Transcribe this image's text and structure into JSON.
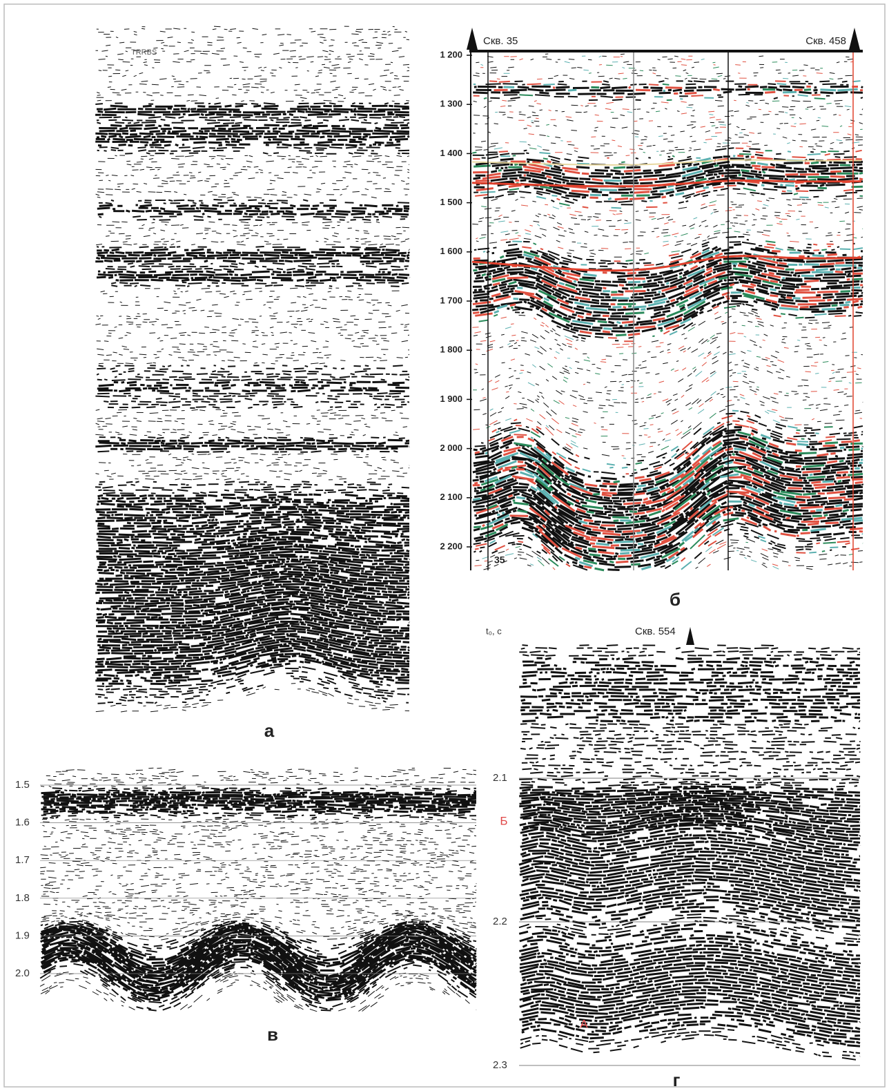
{
  "panel_a": {
    "label": "а",
    "inset_text": "TRRBS"
  },
  "panel_b": {
    "label": "б",
    "well_left": "Скв. 35",
    "well_right": "Скв. 458",
    "well_number": "35",
    "ticks": [
      "1 200",
      "1 300",
      "1 400",
      "1 500",
      "1 600",
      "1 700",
      "1 800",
      "1 900",
      "2 000",
      "2 100",
      "2 200"
    ]
  },
  "panel_c": {
    "label": "в",
    "ticks": [
      "1.5",
      "1.6",
      "1.7",
      "1.8",
      "1.9",
      "2.0"
    ]
  },
  "panel_d": {
    "label": "г",
    "axis_title": "t₀, с",
    "well": "Скв. 554",
    "ticks": [
      "2.1",
      "2.2",
      "2.3"
    ],
    "horizon_b": "Б",
    "horizon_a": "А"
  }
}
